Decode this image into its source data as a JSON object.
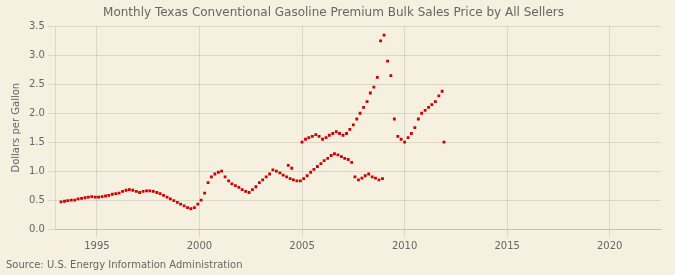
{
  "chart_data": {
    "type": "scatter",
    "title": "Monthly Texas Conventional Gasoline Premium Bulk Sales Price by All Sellers",
    "ylabel": "Dollars per Gallon",
    "annotation": "Source: U.S. Energy Information Administration",
    "color": "#cc0000",
    "background_color": "#f5f0e0",
    "marker": "square",
    "grid": true,
    "xlim": [
      1993.0,
      2022.5
    ],
    "ylim": [
      0.0,
      3.5
    ],
    "xticks": [
      1995,
      2000,
      2005,
      2010,
      2015,
      2020
    ],
    "yticks": [
      {
        "value": 0.0,
        "label": "0.0"
      },
      0.5,
      {
        "value": 1.0,
        "label": "1.0"
      },
      1.5,
      {
        "value": 2.0,
        "label": "2.0"
      },
      2.5,
      {
        "value": 3.0,
        "label": "3.0"
      },
      3.5
    ],
    "x": [
      1993.25,
      1993.42,
      1993.58,
      1993.75,
      1993.92,
      1994.08,
      1994.25,
      1994.42,
      1994.58,
      1994.75,
      1994.92,
      1995.08,
      1995.25,
      1995.42,
      1995.58,
      1995.75,
      1995.92,
      1996.08,
      1996.25,
      1996.42,
      1996.58,
      1996.75,
      1996.92,
      1997.08,
      1997.25,
      1997.42,
      1997.58,
      1997.75,
      1997.92,
      1998.08,
      1998.25,
      1998.42,
      1998.58,
      1998.75,
      1998.92,
      1999.08,
      1999.25,
      1999.42,
      1999.58,
      1999.75,
      1999.92,
      2000.08,
      2000.25,
      2000.42,
      2000.58,
      2000.75,
      2000.92,
      2001.08,
      2001.25,
      2001.42,
      2001.58,
      2001.75,
      2001.92,
      2002.08,
      2002.25,
      2002.42,
      2002.58,
      2002.75,
      2002.92,
      2003.08,
      2003.25,
      2003.42,
      2003.58,
      2003.75,
      2003.92,
      2004.08,
      2004.25,
      2004.42,
      2004.58,
      2004.75,
      2004.92,
      2005.08,
      2005.25,
      2005.42,
      2005.58,
      2005.75,
      2005.92,
      2006.08,
      2006.25,
      2006.42,
      2006.58,
      2006.75,
      2006.92,
      2007.08,
      2007.25,
      2007.42,
      2007.58,
      2007.75,
      2007.92,
      2008.08,
      2008.25,
      2008.42,
      2008.58,
      2008.75,
      2008.92,
      2004.33,
      2004.5,
      2005.0,
      2005.17,
      2005.33,
      2005.5,
      2005.67,
      2005.83,
      2006.0,
      2006.17,
      2006.33,
      2006.5,
      2006.67,
      2006.83,
      2007.0,
      2007.17,
      2007.33,
      2007.5,
      2007.67,
      2007.83,
      2008.0,
      2008.17,
      2008.33,
      2008.5,
      2008.67,
      2008.83,
      2009.0,
      2009.17,
      2009.33,
      2009.5,
      2009.67,
      2009.83,
      2010.0,
      2010.17,
      2010.33,
      2010.5,
      2010.67,
      2010.83,
      2011.0,
      2011.17,
      2011.33,
      2011.5,
      2011.67,
      2011.83,
      2011.92
    ],
    "values": [
      0.47,
      0.48,
      0.49,
      0.5,
      0.5,
      0.52,
      0.53,
      0.54,
      0.55,
      0.56,
      0.55,
      0.55,
      0.56,
      0.57,
      0.58,
      0.6,
      0.61,
      0.62,
      0.65,
      0.67,
      0.68,
      0.67,
      0.65,
      0.63,
      0.65,
      0.66,
      0.66,
      0.65,
      0.63,
      0.61,
      0.58,
      0.55,
      0.52,
      0.49,
      0.46,
      0.43,
      0.4,
      0.37,
      0.35,
      0.37,
      0.43,
      0.5,
      0.62,
      0.8,
      0.9,
      0.95,
      0.98,
      1.0,
      0.9,
      0.83,
      0.78,
      0.75,
      0.72,
      0.68,
      0.65,
      0.63,
      0.68,
      0.73,
      0.8,
      0.85,
      0.9,
      0.95,
      1.02,
      1.0,
      0.97,
      0.93,
      0.9,
      0.87,
      0.85,
      0.83,
      0.83,
      0.87,
      0.92,
      0.98,
      1.03,
      1.08,
      1.13,
      1.18,
      1.22,
      1.27,
      1.3,
      1.28,
      1.25,
      1.22,
      1.2,
      1.15,
      0.9,
      0.85,
      0.88,
      0.92,
      0.95,
      0.9,
      0.88,
      0.85,
      0.87,
      1.1,
      1.05,
      1.5,
      1.55,
      1.58,
      1.6,
      1.63,
      1.6,
      1.55,
      1.58,
      1.62,
      1.65,
      1.68,
      1.65,
      1.62,
      1.65,
      1.72,
      1.8,
      1.9,
      2.0,
      2.1,
      2.2,
      2.35,
      2.45,
      2.62,
      3.25,
      3.35,
      2.9,
      2.65,
      1.9,
      1.6,
      1.55,
      1.5,
      1.58,
      1.65,
      1.75,
      1.9,
      2.0,
      2.05,
      2.1,
      2.15,
      2.2,
      2.3,
      2.38,
      1.5
    ]
  }
}
